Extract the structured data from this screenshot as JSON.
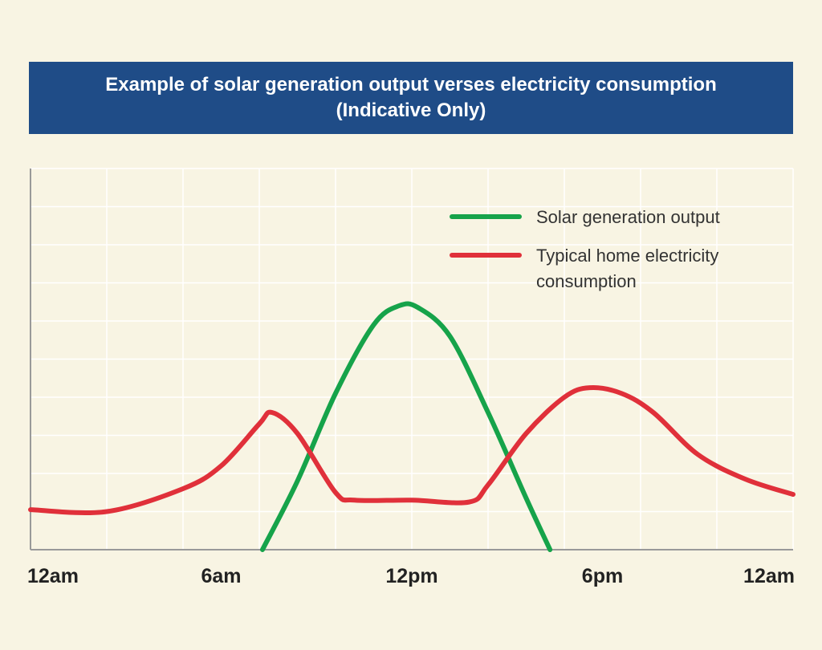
{
  "chart_data": {
    "type": "line",
    "title": "Example of solar generation output verses electricity consumption",
    "subtitle": "(Indicative Only)",
    "xlim": [
      0,
      24
    ],
    "xticks": [
      {
        "value": 0,
        "label": "12am"
      },
      {
        "value": 6,
        "label": "6am"
      },
      {
        "value": 12,
        "label": "12pm"
      },
      {
        "value": 18,
        "label": "6pm"
      },
      {
        "value": 24,
        "label": "12am"
      }
    ],
    "ylim": [
      0,
      10
    ],
    "grid": true,
    "series": [
      {
        "name": "Solar generation output",
        "color": "#16a34a",
        "x": [
          7.3,
          8.4,
          9.6,
          10.8,
          11.6,
          12.2,
          13.2,
          14.4,
          15.6,
          16.35
        ],
        "values": [
          0,
          1.8,
          4.1,
          5.9,
          6.4,
          6.35,
          5.6,
          3.6,
          1.35,
          0
        ]
      },
      {
        "name": "Typical home electricity consumption",
        "color": "#e0303a",
        "x": [
          0,
          2.4,
          4.8,
          6,
          7.2,
          7.6,
          8.4,
          9.6,
          10.2,
          12,
          13.8,
          14.4,
          15.6,
          16.8,
          17.6,
          18.6,
          19.6,
          21,
          22.5,
          24
        ],
        "values": [
          1.05,
          1.0,
          1.6,
          2.2,
          3.3,
          3.6,
          3.05,
          1.5,
          1.3,
          1.3,
          1.25,
          1.7,
          3.05,
          4.0,
          4.25,
          4.1,
          3.6,
          2.5,
          1.85,
          1.45
        ]
      }
    ]
  }
}
